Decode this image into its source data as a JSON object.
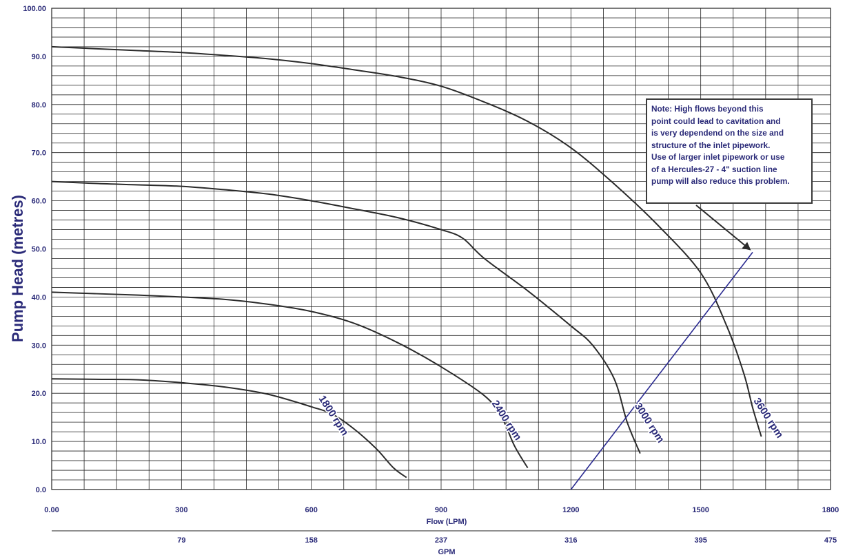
{
  "chart_data": {
    "type": "line",
    "ylabel": "Pump Head (metres)",
    "xlabel": "Flow (LPM)",
    "x2label": "GPM",
    "xlim": [
      0,
      1800
    ],
    "ylim": [
      0,
      100
    ],
    "grid": true,
    "x_ticks": [
      "0.00",
      "300",
      "600",
      "900",
      "1200",
      "1500",
      "1800"
    ],
    "y_ticks": [
      "0.0",
      "10.0",
      "20.0",
      "30.0",
      "40.0",
      "50.0",
      "60.0",
      "70.0",
      "80.0",
      "90.0",
      "100.00"
    ],
    "x2_ticks": [
      {
        "lpm": 300,
        "label": "79"
      },
      {
        "lpm": 600,
        "label": "158"
      },
      {
        "lpm": 900,
        "label": "237"
      },
      {
        "lpm": 1200,
        "label": "316"
      },
      {
        "lpm": 1500,
        "label": "395"
      },
      {
        "lpm": 1800,
        "label": "475"
      }
    ],
    "series": [
      {
        "name": "1800 rpm",
        "label_at": [
          645,
          15
        ],
        "points": [
          [
            0,
            23
          ],
          [
            100,
            22.9
          ],
          [
            200,
            22.8
          ],
          [
            300,
            22.2
          ],
          [
            400,
            21.3
          ],
          [
            500,
            19.8
          ],
          [
            600,
            17.2
          ],
          [
            650,
            15.6
          ],
          [
            700,
            12.5
          ],
          [
            750,
            8.5
          ],
          [
            790,
            4.5
          ],
          [
            820,
            2.5
          ]
        ]
      },
      {
        "name": "2400 rpm",
        "label_at": [
          1045,
          14
        ],
        "points": [
          [
            0,
            41
          ],
          [
            100,
            40.7
          ],
          [
            200,
            40.4
          ],
          [
            300,
            40
          ],
          [
            400,
            39.5
          ],
          [
            500,
            38.5
          ],
          [
            600,
            37
          ],
          [
            700,
            34.5
          ],
          [
            800,
            30.5
          ],
          [
            900,
            25.5
          ],
          [
            1000,
            19.5
          ],
          [
            1040,
            15
          ],
          [
            1070,
            9
          ],
          [
            1100,
            4.5
          ]
        ]
      },
      {
        "name": "3000 rpm",
        "label_at": [
          1375,
          13.5
        ],
        "points": [
          [
            0,
            64
          ],
          [
            100,
            63.6
          ],
          [
            200,
            63.3
          ],
          [
            300,
            63
          ],
          [
            400,
            62.3
          ],
          [
            500,
            61.4
          ],
          [
            600,
            60
          ],
          [
            700,
            58.3
          ],
          [
            800,
            56.5
          ],
          [
            900,
            54
          ],
          [
            950,
            52.2
          ],
          [
            1000,
            48
          ],
          [
            1100,
            41.3
          ],
          [
            1200,
            34
          ],
          [
            1250,
            30
          ],
          [
            1300,
            23
          ],
          [
            1330,
            14
          ],
          [
            1360,
            7.5
          ]
        ]
      },
      {
        "name": "3600 rpm",
        "label_at": [
          1650,
          14.5
        ],
        "points": [
          [
            0,
            92
          ],
          [
            100,
            91.6
          ],
          [
            200,
            91.2
          ],
          [
            300,
            90.8
          ],
          [
            400,
            90.2
          ],
          [
            500,
            89.5
          ],
          [
            600,
            88.5
          ],
          [
            700,
            87.2
          ],
          [
            800,
            85.8
          ],
          [
            900,
            83.8
          ],
          [
            1000,
            80.5
          ],
          [
            1100,
            76.5
          ],
          [
            1200,
            71
          ],
          [
            1300,
            63.5
          ],
          [
            1400,
            55
          ],
          [
            1500,
            45
          ],
          [
            1560,
            34
          ],
          [
            1600,
            24
          ],
          [
            1620,
            17
          ],
          [
            1640,
            11
          ]
        ]
      }
    ],
    "cavitation_line": [
      [
        1200,
        0
      ],
      [
        1620,
        49.3
      ]
    ],
    "annotation": {
      "lines": [
        "Note: High flows beyond this",
        "point could lead to cavitation and",
        "is very dependend on the size and",
        "structure of the inlet pipework.",
        "Use of larger inlet pipework or use",
        "of a Hercules-27 - 4\" suction line",
        "pump will also reduce this problem."
      ],
      "arrow_to": [
        1620,
        49.3
      ]
    },
    "colors": {
      "curve": "#2b2b2b",
      "cavitation_line": "#2a2a90",
      "text": "#2a2a78",
      "grid": "#222222"
    }
  }
}
